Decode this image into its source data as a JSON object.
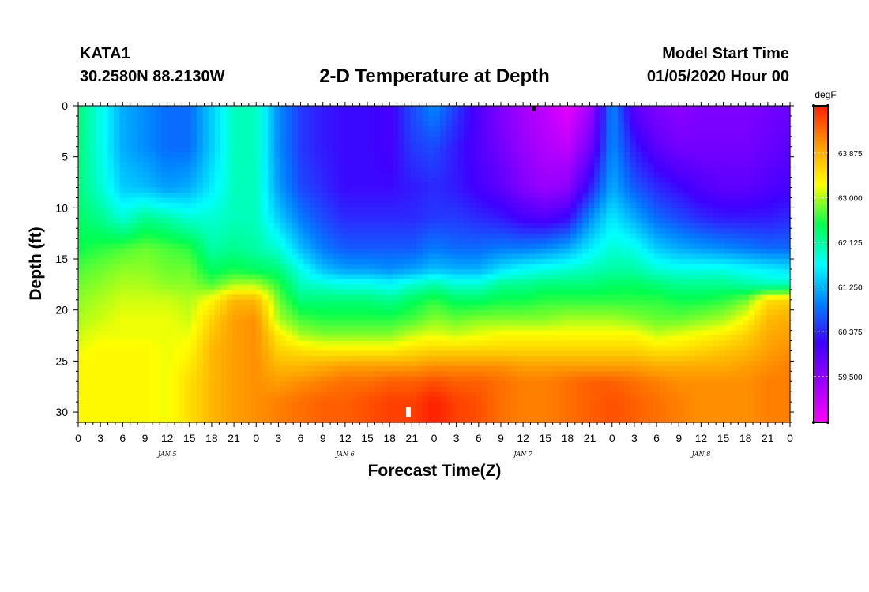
{
  "header": {
    "station": "KATA1",
    "coords": "30.2580N 88.2130W",
    "title": "2-D Temperature at Depth",
    "model_start_label": "Model Start Time",
    "model_start_value": "01/05/2020 Hour 00"
  },
  "chart_data": {
    "type": "heatmap",
    "title": "2-D Temperature at Depth",
    "xlabel": "Forecast Time(Z)",
    "ylabel": "Depth (ft)",
    "x_tick_labels": [
      "0",
      "3",
      "6",
      "9",
      "12",
      "15",
      "18",
      "21",
      "0",
      "3",
      "6",
      "9",
      "12",
      "15",
      "18",
      "21",
      "0",
      "3",
      "6",
      "9",
      "12",
      "15",
      "18",
      "21",
      "0",
      "3",
      "6",
      "9",
      "12",
      "15",
      "18",
      "21",
      "0"
    ],
    "day_labels": [
      "JAN 5",
      "JAN 6",
      "JAN 7",
      "JAN 8"
    ],
    "xlim_hours": [
      0,
      96
    ],
    "ylim": [
      31,
      0
    ],
    "y_ticks": [
      0,
      5,
      10,
      15,
      20,
      25,
      30
    ],
    "y_tick_labels": [
      "0",
      "5",
      "10",
      "15",
      "20",
      "25",
      "30"
    ],
    "colorbar": {
      "unit": "degF",
      "range": [
        58.6,
        64.8
      ],
      "ticks": [
        59.5,
        60.375,
        61.25,
        62.125,
        63.0,
        63.875
      ],
      "tick_labels": [
        "59.500",
        "60.375",
        "61.250",
        "62.125",
        "63.000",
        "63.875"
      ],
      "colormap": [
        "#ff00ff",
        "#9b00ff",
        "#3f00ff",
        "#0080ff",
        "#00ffff",
        "#00ff50",
        "#ffff00",
        "#ff9b00",
        "#ff2000"
      ]
    },
    "depth_profile_ft": [
      0,
      4,
      8,
      11,
      14,
      16,
      17.5,
      19,
      21,
      22.5,
      24,
      25.5,
      27,
      29,
      31
    ],
    "time_hours": [
      0,
      3,
      6,
      9,
      12,
      15,
      18,
      21,
      24,
      27,
      30,
      33,
      36,
      39,
      42,
      45,
      48,
      51,
      54,
      57,
      60,
      63,
      66,
      69,
      72,
      75,
      78,
      81,
      84,
      87,
      90,
      93,
      96
    ],
    "temperature_degF": [
      [
        62.3,
        62.3,
        62.3,
        62.4,
        62.5,
        62.7,
        62.8,
        62.9,
        63.0,
        63.1,
        63.2,
        63.3,
        63.3,
        63.3,
        63.3
      ],
      [
        61.8,
        61.8,
        61.9,
        62.2,
        62.6,
        62.8,
        62.9,
        63.0,
        63.1,
        63.2,
        63.3,
        63.3,
        63.3,
        63.3,
        63.3
      ],
      [
        61.2,
        61.2,
        61.4,
        61.9,
        62.7,
        62.9,
        63.0,
        63.1,
        63.2,
        63.2,
        63.3,
        63.3,
        63.3,
        63.3,
        63.3
      ],
      [
        61.0,
        61.0,
        61.3,
        62.2,
        62.8,
        62.9,
        63.0,
        63.1,
        63.2,
        63.2,
        63.3,
        63.3,
        63.3,
        63.3,
        63.3
      ],
      [
        60.8,
        60.8,
        61.1,
        62.1,
        62.7,
        62.8,
        62.9,
        63.1,
        63.2,
        63.2,
        63.2,
        63.2,
        63.2,
        63.2,
        63.2
      ],
      [
        60.8,
        60.8,
        61.2,
        61.9,
        62.6,
        62.8,
        62.9,
        63.0,
        63.1,
        63.2,
        63.3,
        63.4,
        63.5,
        63.5,
        63.5
      ],
      [
        61.4,
        61.4,
        61.6,
        61.9,
        62.1,
        62.4,
        62.7,
        63.3,
        63.6,
        63.7,
        63.8,
        63.8,
        63.8,
        63.8,
        63.8
      ],
      [
        62.0,
        62.0,
        62.0,
        62.0,
        62.2,
        62.5,
        63.0,
        63.8,
        64.0,
        64.0,
        64.0,
        64.0,
        64.0,
        64.0,
        64.0
      ],
      [
        62.0,
        62.0,
        62.0,
        62.0,
        62.1,
        62.4,
        63.0,
        63.8,
        64.1,
        64.1,
        64.1,
        64.1,
        64.1,
        64.1,
        64.1
      ],
      [
        61.0,
        61.0,
        61.1,
        61.4,
        61.9,
        62.3,
        62.6,
        62.8,
        63.0,
        63.4,
        63.6,
        63.8,
        64.0,
        64.2,
        64.2
      ],
      [
        60.5,
        60.5,
        60.6,
        60.9,
        61.3,
        61.8,
        62.0,
        62.3,
        62.7,
        63.0,
        63.5,
        63.8,
        64.1,
        64.3,
        64.3
      ],
      [
        60.3,
        60.3,
        60.4,
        60.6,
        60.9,
        61.3,
        61.9,
        62.3,
        62.6,
        62.9,
        63.4,
        63.9,
        64.2,
        64.4,
        64.4
      ],
      [
        60.2,
        60.2,
        60.2,
        60.4,
        60.7,
        61.1,
        61.8,
        62.3,
        62.6,
        62.9,
        63.4,
        64.0,
        64.3,
        64.4,
        64.4
      ],
      [
        60.2,
        60.2,
        60.2,
        60.4,
        60.7,
        61.1,
        61.8,
        62.3,
        62.6,
        62.9,
        63.4,
        64.0,
        64.3,
        64.5,
        64.5
      ],
      [
        60.1,
        60.1,
        60.2,
        60.4,
        60.7,
        61.0,
        61.7,
        62.2,
        62.6,
        62.9,
        63.4,
        64.0,
        64.4,
        64.6,
        64.6
      ],
      [
        60.6,
        60.5,
        60.3,
        60.4,
        60.7,
        61.1,
        61.9,
        62.4,
        62.7,
        63.1,
        63.5,
        64.0,
        64.4,
        64.6,
        64.6
      ],
      [
        61.0,
        60.6,
        60.4,
        60.5,
        60.9,
        61.3,
        62.1,
        62.6,
        62.9,
        63.2,
        63.6,
        64.1,
        64.5,
        64.8,
        64.8
      ],
      [
        60.5,
        60.3,
        60.3,
        60.5,
        60.8,
        61.2,
        61.9,
        62.4,
        62.8,
        63.1,
        63.6,
        64.1,
        64.4,
        64.6,
        64.6
      ],
      [
        60.0,
        60.0,
        60.1,
        60.4,
        60.8,
        61.2,
        61.9,
        62.4,
        62.9,
        63.2,
        63.6,
        64.1,
        64.4,
        64.5,
        64.5
      ],
      [
        59.6,
        59.7,
        59.9,
        60.3,
        60.9,
        61.5,
        62.2,
        62.5,
        62.9,
        63.3,
        63.6,
        64.1,
        64.3,
        64.3,
        64.3
      ],
      [
        59.3,
        59.4,
        59.6,
        60.1,
        60.9,
        61.7,
        62.2,
        62.5,
        62.9,
        63.3,
        63.6,
        64.0,
        64.2,
        64.2,
        64.2
      ],
      [
        59.1,
        59.2,
        59.4,
        60.0,
        61.0,
        61.8,
        62.3,
        62.6,
        62.9,
        63.3,
        63.6,
        64.0,
        64.2,
        64.2,
        64.2
      ],
      [
        58.8,
        59.1,
        59.5,
        60.2,
        61.2,
        61.9,
        62.3,
        62.6,
        63.0,
        63.3,
        63.6,
        64.0,
        64.3,
        64.3,
        64.3
      ],
      [
        59.3,
        59.7,
        60.3,
        61.0,
        61.6,
        62.0,
        62.3,
        62.6,
        63.0,
        63.3,
        63.6,
        64.0,
        64.4,
        64.4,
        64.4
      ],
      [
        61.0,
        61.0,
        61.2,
        61.6,
        61.9,
        62.1,
        62.4,
        62.6,
        63.0,
        63.3,
        63.6,
        64.0,
        64.4,
        64.5,
        64.5
      ],
      [
        59.9,
        60.3,
        60.7,
        61.2,
        61.8,
        62.1,
        62.4,
        62.6,
        62.9,
        63.3,
        63.6,
        64.0,
        64.3,
        64.4,
        64.4
      ],
      [
        59.6,
        59.9,
        60.4,
        60.8,
        61.4,
        61.9,
        62.3,
        62.6,
        62.8,
        63.1,
        63.5,
        63.9,
        64.2,
        64.3,
        64.3
      ],
      [
        59.5,
        59.7,
        60.2,
        60.6,
        61.2,
        61.8,
        62.2,
        62.5,
        62.8,
        63.2,
        63.5,
        63.9,
        64.1,
        64.2,
        64.2
      ],
      [
        59.6,
        59.7,
        60.0,
        60.4,
        61.1,
        61.8,
        62.2,
        62.5,
        62.9,
        63.3,
        63.6,
        63.9,
        64.1,
        64.1,
        64.1
      ],
      [
        59.6,
        59.7,
        59.9,
        60.3,
        61.0,
        61.8,
        62.2,
        62.6,
        63.0,
        63.4,
        63.7,
        63.9,
        64.1,
        64.1,
        64.1
      ],
      [
        59.6,
        59.7,
        59.9,
        60.3,
        60.9,
        61.7,
        62.1,
        62.8,
        63.3,
        63.6,
        63.8,
        64.0,
        64.1,
        64.1,
        64.1
      ],
      [
        59.7,
        59.8,
        60.0,
        60.3,
        60.8,
        61.6,
        62.0,
        63.5,
        63.8,
        63.9,
        64.0,
        64.1,
        64.2,
        64.2,
        64.2
      ],
      [
        59.8,
        59.9,
        60.1,
        60.4,
        60.8,
        61.5,
        62.0,
        63.6,
        63.9,
        64.0,
        64.1,
        64.2,
        64.2,
        64.2,
        64.2
      ]
    ]
  }
}
